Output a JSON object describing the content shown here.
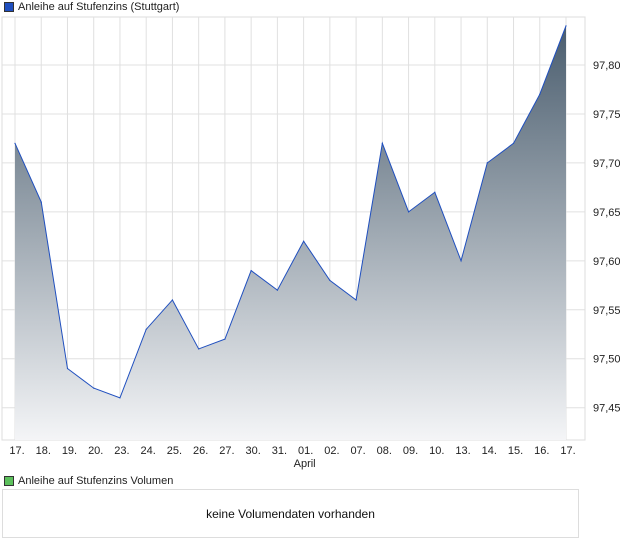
{
  "legend_price": "Anleihe auf Stufenzins (Stuttgart)",
  "legend_volume": "Anleihe auf Stufenzins Volumen",
  "volume_message": "keine Volumendaten vorhanden",
  "colors": {
    "price": "#1f4fbf",
    "volume": "#5cc05c",
    "fill_top": "#4a5d6e",
    "fill_bottom": "#f4f5f7"
  },
  "chart_data": {
    "type": "area",
    "title": "Anleihe auf Stufenzins (Stuttgart)",
    "categories": [
      "17.",
      "18.",
      "19.",
      "20.",
      "23.",
      "24.",
      "25.",
      "26.",
      "27.",
      "30.",
      "31.",
      "01.",
      "02.",
      "07.",
      "08.",
      "09.",
      "10.",
      "13.",
      "14.",
      "15.",
      "16.",
      "17."
    ],
    "month_label": "April",
    "values": [
      97.72,
      97.66,
      97.49,
      97.47,
      97.46,
      97.53,
      97.56,
      97.51,
      97.52,
      97.59,
      97.57,
      97.62,
      97.58,
      97.56,
      97.72,
      97.65,
      97.67,
      97.6,
      97.7,
      97.72,
      97.77,
      97.84
    ],
    "yticks": [
      "97,45",
      "97,50",
      "97,55",
      "97,60",
      "97,65",
      "97,70",
      "97,75",
      "97,80"
    ],
    "ytick_values": [
      97.45,
      97.5,
      97.55,
      97.6,
      97.65,
      97.7,
      97.75,
      97.8
    ],
    "ylim": [
      97.417,
      97.849
    ],
    "grid": true
  }
}
